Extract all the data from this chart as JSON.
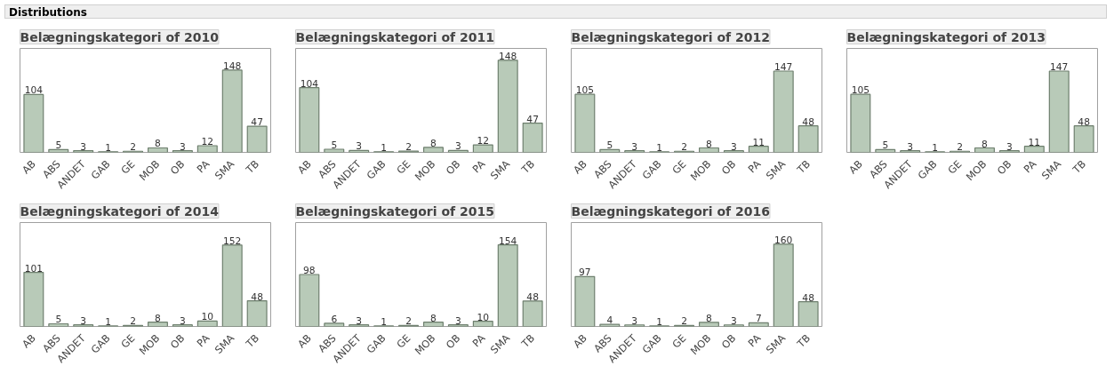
{
  "chart_data": [
    {
      "type": "bar",
      "title": "Belægningskategori of 2010",
      "annotations": [
        "Distributions"
      ],
      "categories": [
        "AB",
        "ABS",
        "ANDET",
        "GAB",
        "GE",
        "MOB",
        "OB",
        "PA",
        "SMA",
        "TB"
      ],
      "values": [
        104,
        5,
        3,
        1,
        2,
        8,
        3,
        12,
        148,
        47
      ],
      "color": "#b8cab8",
      "ylim": [
        0,
        187
      ],
      "data_labels": true,
      "tick_labels": "x",
      "grid": false
    },
    {
      "type": "bar",
      "title": "Belægningskategori of 2011",
      "categories": [
        "AB",
        "ABS",
        "ANDET",
        "GAB",
        "GE",
        "MOB",
        "OB",
        "PA",
        "SMA",
        "TB"
      ],
      "values": [
        104,
        5,
        3,
        1,
        2,
        8,
        3,
        12,
        148,
        47
      ],
      "color": "#b8cab8",
      "ylim": [
        0,
        167
      ],
      "data_labels": true,
      "tick_labels": "x",
      "grid": false
    },
    {
      "type": "bar",
      "title": "Belægningskategori of 2012",
      "categories": [
        "AB",
        "ABS",
        "ANDET",
        "GAB",
        "GE",
        "MOB",
        "OB",
        "PA",
        "SMA",
        "TB"
      ],
      "values": [
        105,
        5,
        3,
        1,
        2,
        8,
        3,
        11,
        147,
        48
      ],
      "color": "#b8cab8",
      "ylim": [
        0,
        188
      ],
      "data_labels": true,
      "tick_labels": "x",
      "grid": false
    },
    {
      "type": "bar",
      "title": "Belægningskategori of 2013",
      "categories": [
        "AB",
        "ABS",
        "ANDET",
        "GAB",
        "GE",
        "MOB",
        "OB",
        "PA",
        "SMA",
        "TB"
      ],
      "values": [
        105,
        5,
        3,
        1,
        2,
        8,
        3,
        11,
        147,
        48
      ],
      "color": "#b8cab8",
      "ylim": [
        0,
        188
      ],
      "data_labels": true,
      "tick_labels": "x",
      "grid": false
    },
    {
      "type": "bar",
      "title": "Belægningskategori of 2014",
      "categories": [
        "AB",
        "ABS",
        "ANDET",
        "GAB",
        "GE",
        "MOB",
        "OB",
        "PA",
        "SMA",
        "TB"
      ],
      "values": [
        101,
        5,
        3,
        1,
        2,
        8,
        3,
        10,
        152,
        48
      ],
      "color": "#b8cab8",
      "ylim": [
        0,
        194
      ],
      "data_labels": true,
      "tick_labels": "x",
      "grid": false
    },
    {
      "type": "bar",
      "title": "Belægningskategori of 2015",
      "categories": [
        "AB",
        "ABS",
        "ANDET",
        "GAB",
        "GE",
        "MOB",
        "OB",
        "PA",
        "SMA",
        "TB"
      ],
      "values": [
        98,
        6,
        3,
        1,
        2,
        8,
        3,
        10,
        154,
        48
      ],
      "color": "#b8cab8",
      "ylim": [
        0,
        196
      ],
      "data_labels": true,
      "tick_labels": "x",
      "grid": false
    },
    {
      "type": "bar",
      "title": "Belægningskategori of 2016",
      "categories": [
        "AB",
        "ABS",
        "ANDET",
        "GAB",
        "GE",
        "MOB",
        "OB",
        "PA",
        "SMA",
        "TB"
      ],
      "values": [
        97,
        4,
        3,
        1,
        2,
        8,
        3,
        7,
        160,
        48
      ],
      "color": "#b8cab8",
      "ylim": [
        0,
        202
      ],
      "data_labels": true,
      "tick_labels": "x",
      "grid": false
    }
  ]
}
